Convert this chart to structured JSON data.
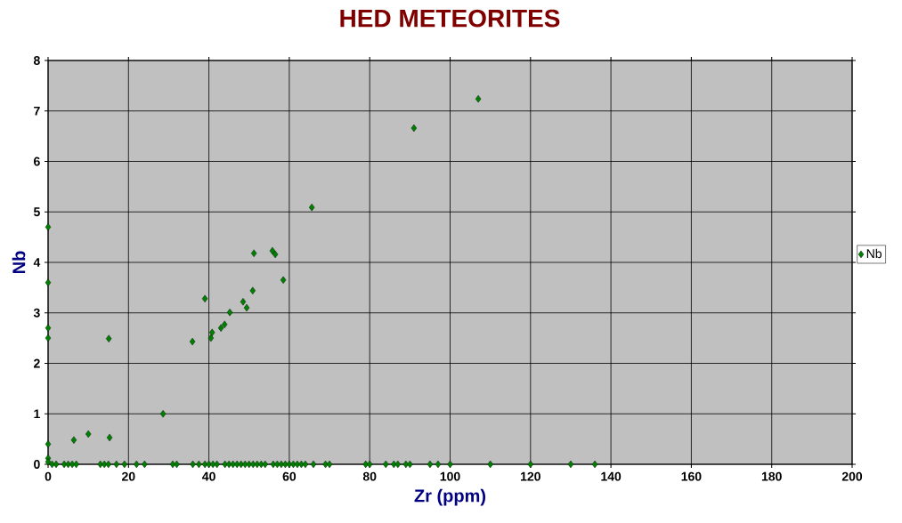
{
  "chart_data": {
    "type": "scatter",
    "title": "HED METEORITES",
    "xlabel": "Zr (ppm)",
    "ylabel": "Nb",
    "xlim": [
      0,
      200
    ],
    "xticks": [
      0,
      20,
      40,
      60,
      80,
      100,
      120,
      140,
      160,
      180,
      200
    ],
    "ylim": [
      0,
      8
    ],
    "yticks": [
      0,
      1,
      2,
      3,
      4,
      5,
      6,
      7,
      8
    ],
    "grid": true,
    "legend": "right",
    "marker": "diamond",
    "series": [
      {
        "name": "Nb",
        "color": "#008000",
        "x": [
          0,
          0,
          0,
          0,
          0,
          0,
          0,
          6.4,
          10,
          15.1,
          15.3,
          28.6,
          35.9,
          39,
          40.5,
          40.8,
          43,
          43.9,
          45.2,
          48.5,
          49.4,
          50.9,
          51.2,
          55.8,
          56.5,
          58.5,
          65.6,
          91,
          107,
          1,
          2,
          4,
          5,
          6,
          7,
          13,
          14,
          15,
          17,
          19,
          22,
          24,
          31,
          32,
          36,
          37.5,
          39,
          40,
          41,
          42,
          44,
          45,
          46,
          47,
          48,
          49,
          50,
          51,
          52,
          53,
          54,
          56,
          57,
          58,
          59,
          60,
          61,
          62,
          63,
          64,
          66,
          69,
          70,
          79,
          80,
          84,
          86,
          87,
          89,
          90,
          95,
          97,
          100,
          110,
          120,
          130,
          136
        ],
        "values": [
          4.7,
          3.6,
          2.7,
          2.5,
          0.4,
          0.12,
          0.05,
          0.48,
          0.6,
          2.49,
          0.53,
          1.0,
          2.43,
          3.28,
          2.5,
          2.61,
          2.7,
          2.77,
          3.01,
          3.22,
          3.1,
          3.44,
          4.18,
          4.23,
          4.16,
          3.65,
          5.09,
          6.66,
          7.24,
          0,
          0,
          0,
          0,
          0,
          0,
          0,
          0,
          0,
          0,
          0,
          0,
          0,
          0,
          0,
          0,
          0,
          0,
          0,
          0,
          0,
          0,
          0,
          0,
          0,
          0,
          0,
          0,
          0,
          0,
          0,
          0,
          0,
          0,
          0,
          0,
          0,
          0,
          0,
          0,
          0,
          0,
          0,
          0,
          0,
          0,
          0,
          0,
          0,
          0,
          0,
          0,
          0,
          0,
          0,
          0,
          0,
          0
        ]
      }
    ]
  }
}
